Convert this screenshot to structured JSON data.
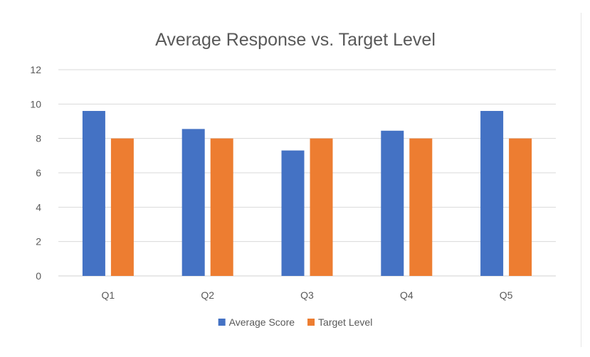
{
  "chart_data": {
    "type": "bar",
    "title": "Average Response vs. Target Level",
    "categories": [
      "Q1",
      "Q2",
      "Q3",
      "Q4",
      "Q5"
    ],
    "series": [
      {
        "name": "Average Score",
        "values": [
          9.6,
          8.55,
          7.3,
          8.45,
          9.6
        ],
        "color": "#4472C4"
      },
      {
        "name": "Target Level",
        "values": [
          8,
          8,
          8,
          8,
          8
        ],
        "color": "#ED7D31"
      }
    ],
    "y_ticks": [
      0,
      2,
      4,
      6,
      8,
      10,
      12
    ],
    "ylim": [
      0,
      12
    ],
    "grid": true,
    "legend_position": "bottom"
  }
}
